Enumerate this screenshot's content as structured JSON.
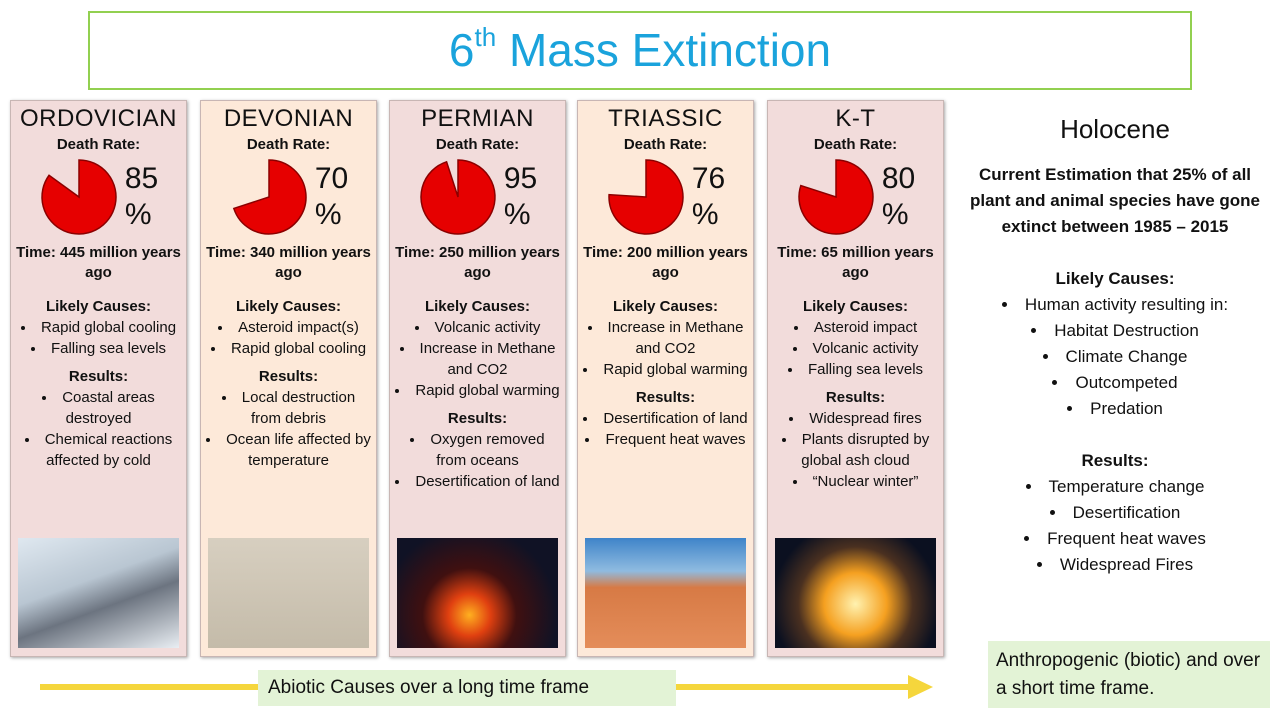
{
  "title": {
    "number": "6",
    "superscript": "th",
    "text": "Mass Extinction"
  },
  "columns": [
    {
      "name": "ORDOVICIAN",
      "death_rate_label": "Death Rate:",
      "death_rate": 85,
      "unit": "%",
      "time": "Time: 445 million years ago",
      "causes_heading": "Likely Causes:",
      "causes": [
        "Rapid global cooling",
        "Falling sea levels"
      ],
      "results_heading": "Results:",
      "results": [
        "Coastal areas destroyed",
        "Chemical reactions affected by cold"
      ]
    },
    {
      "name": "DEVONIAN",
      "death_rate_label": "Death Rate:",
      "death_rate": 70,
      "unit": "%",
      "time": "Time: 340 million years ago",
      "causes_heading": "Likely Causes:",
      "causes": [
        "Asteroid impact(s)",
        "Rapid global cooling"
      ],
      "results_heading": "Results:",
      "results": [
        "Local destruction from debris",
        "Ocean life affected by temperature"
      ]
    },
    {
      "name": "PERMIAN",
      "death_rate_label": "Death Rate:",
      "death_rate": 95,
      "unit": "%",
      "time": "Time: 250 million years ago",
      "causes_heading": "Likely Causes:",
      "causes": [
        "Volcanic activity",
        "Increase in Methane and CO2",
        "Rapid global warming"
      ],
      "results_heading": "Results:",
      "results": [
        "Oxygen removed from oceans",
        "Desertification of land"
      ]
    },
    {
      "name": "TRIASSIC",
      "death_rate_label": "Death Rate:",
      "death_rate": 76,
      "unit": "%",
      "time": "Time: 200 million years ago",
      "causes_heading": "Likely Causes:",
      "causes": [
        "Increase in Methane and CO2",
        "Rapid global warming"
      ],
      "results_heading": "Results:",
      "results": [
        "Desertification of land",
        "Frequent heat waves"
      ]
    },
    {
      "name": "K-T",
      "death_rate_label": "Death Rate:",
      "death_rate": 80,
      "unit": "%",
      "time": "Time: 65 million years ago",
      "causes_heading": "Likely Causes:",
      "causes": [
        "Asteroid impact",
        "Volcanic activity",
        "Falling sea levels"
      ],
      "results_heading": "Results:",
      "results": [
        "Widespread fires",
        "Plants disrupted by global ash cloud",
        "“Nuclear winter”"
      ]
    }
  ],
  "holocene": {
    "title": "Holocene",
    "estimation": "Current Estimation that 25% of all plant and animal species have gone extinct between 1985 – 2015",
    "causes_heading": "Likely Causes:",
    "causes": [
      "Human activity resulting in:"
    ],
    "sub_causes": [
      "Habitat Destruction",
      "Climate Change",
      "Outcompeted",
      "Predation"
    ],
    "results_heading": "Results:",
    "results": [
      "Temperature change",
      "Desertification",
      "Frequent heat waves",
      "Widespread Fires"
    ]
  },
  "footer": {
    "abiotic": "Abiotic Causes over a long time frame",
    "anthropogenic": "Anthropogenic (biotic) and over a short time frame."
  }
}
